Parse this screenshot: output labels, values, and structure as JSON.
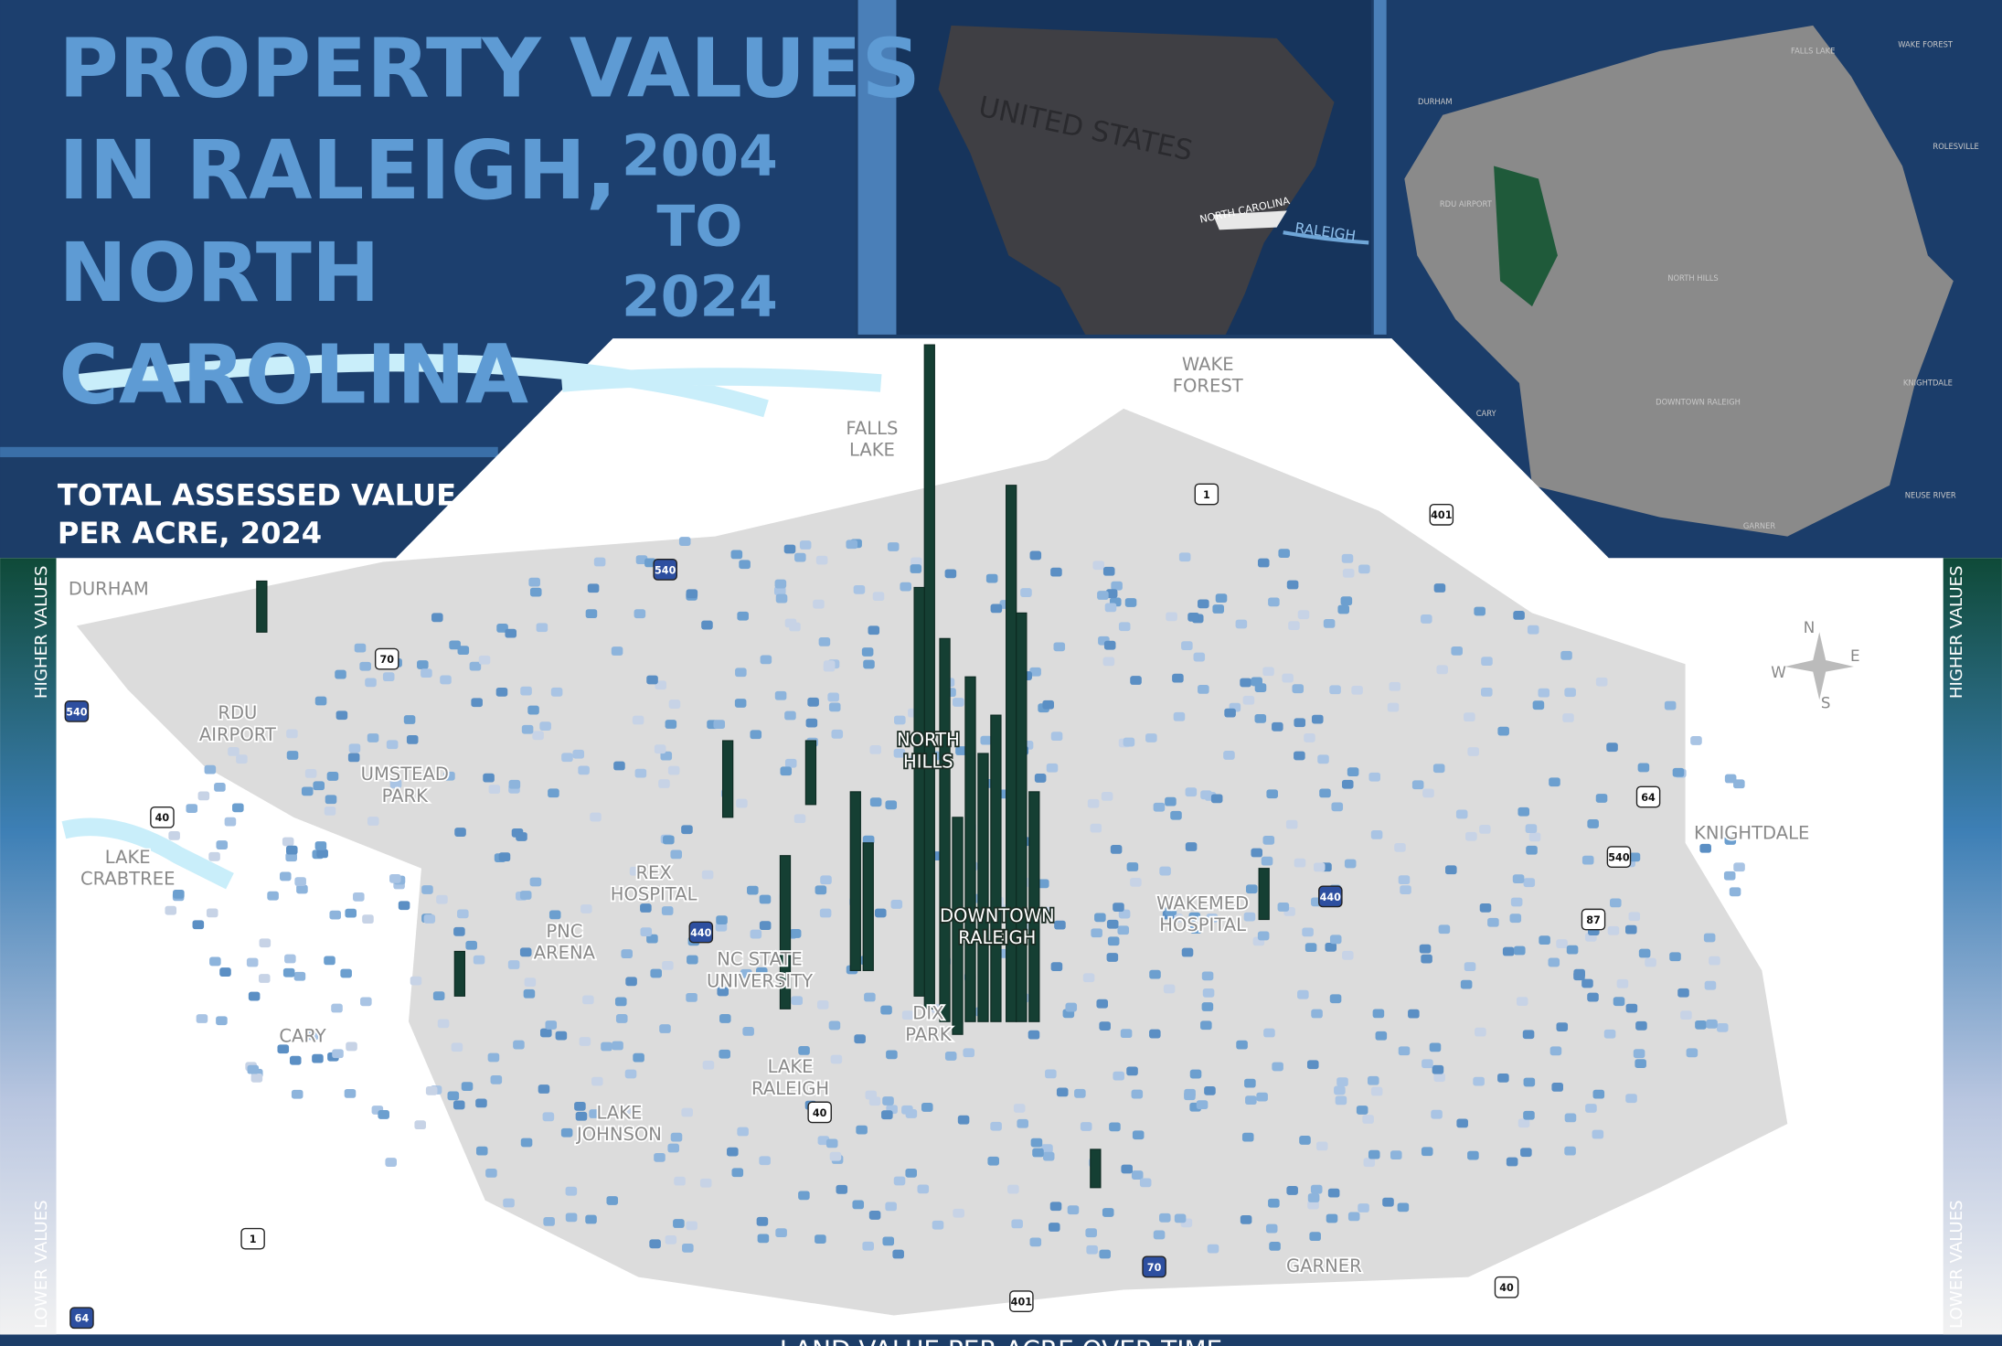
{
  "header": {
    "title_lines": [
      "PROPERTY VALUES",
      "IN RALEIGH,",
      "NORTH",
      "CAROLINA"
    ],
    "years": [
      "2004",
      "TO",
      "2024"
    ],
    "subtitle_lines": [
      "TOTAL ASSESSED VALUE",
      "PER ACRE, 2024"
    ]
  },
  "legend": {
    "high": "HIGHER VALUES",
    "low": "LOWER VALUES"
  },
  "us_inset": {
    "country": "UNITED STATES",
    "state": "NORTH CAROLINA",
    "city": "RALEIGH"
  },
  "city_inset": {
    "labels": [
      "DURHAM",
      "RDU AIRPORT",
      "FALLS LAKE",
      "WAKE FOREST",
      "ROLESVILLE",
      "KNIGHTDALE",
      "GARNER",
      "CARY",
      "NORTH HILLS",
      "DOWNTOWN RALEIGH",
      "NEUSE RIVER"
    ]
  },
  "map": {
    "labels": [
      [
        "DURHAM"
      ],
      [
        "RDU",
        "AIRPORT"
      ],
      [
        "UMSTEAD",
        "PARK"
      ],
      [
        "LAKE",
        "CRABTREE"
      ],
      [
        "CARY"
      ],
      [
        "REX",
        "HOSPITAL"
      ],
      [
        "PNC",
        "ARENA"
      ],
      [
        "NC STATE",
        "UNIVERSITY"
      ],
      [
        "LAKE",
        "JOHNSON"
      ],
      [
        "LAKE",
        "RALEIGH"
      ],
      [
        "DIX",
        "PARK"
      ],
      [
        "DOWNTOWN",
        "RALEIGH"
      ],
      [
        "NORTH",
        "HILLS"
      ],
      [
        "WAKEMED",
        "HOSPITAL"
      ],
      [
        "KNIGHTDALE"
      ],
      [
        "GARNER"
      ],
      [
        "FALLS",
        "LAKE"
      ],
      [
        "WAKE",
        "FOREST"
      ]
    ],
    "shields": [
      "540",
      "70",
      "40",
      "440",
      "1",
      "401",
      "540",
      "64",
      "540",
      "440",
      "87",
      "40",
      "70",
      "401",
      "1",
      "64",
      "40"
    ],
    "compass": [
      "N",
      "E",
      "S",
      "W"
    ]
  },
  "footer": "LAND VALUE PER ACRE OVER TIME"
}
